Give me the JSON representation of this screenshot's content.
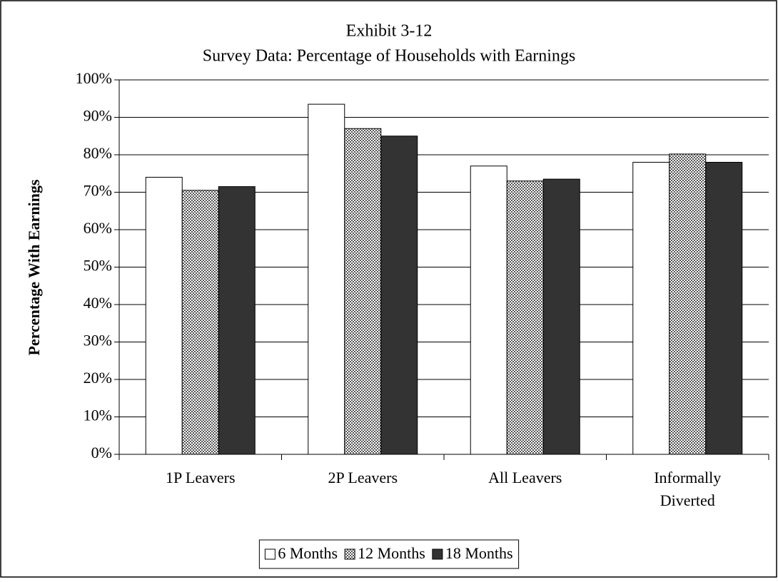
{
  "chart_data": {
    "type": "bar",
    "title": "Exhibit 3-12",
    "subtitle": "Survey Data: Percentage of Households with Earnings",
    "y_label": "Percentage With Earnings",
    "categories": [
      "1P Leavers",
      "2P Leavers",
      "All Leavers",
      "Informally Diverted"
    ],
    "series": [
      {
        "name": "6 Months",
        "color": "#ffffff",
        "values": [
          74,
          93.5,
          77,
          78
        ]
      },
      {
        "name": "12 Months",
        "color": "#9a9a9a",
        "pattern": "checker",
        "values": [
          70.5,
          87,
          73,
          80.2
        ]
      },
      {
        "name": "18 Months",
        "color": "#333333",
        "values": [
          71.5,
          85,
          73.5,
          78
        ]
      }
    ],
    "ylim": [
      0,
      100
    ],
    "yticks": [
      {
        "value": 0,
        "label": "0%"
      },
      {
        "value": 10,
        "label": "10%"
      },
      {
        "value": 20,
        "label": "20%"
      },
      {
        "value": 30,
        "label": "30%"
      },
      {
        "value": 40,
        "label": "40%"
      },
      {
        "value": 50,
        "label": "50%"
      },
      {
        "value": 60,
        "label": "60%"
      },
      {
        "value": 70,
        "label": "70%"
      },
      {
        "value": 80,
        "label": "80%"
      },
      {
        "value": 90,
        "label": "90%"
      },
      {
        "value": 100,
        "label": "100%"
      }
    ],
    "grid": true,
    "legend": "bottom"
  }
}
